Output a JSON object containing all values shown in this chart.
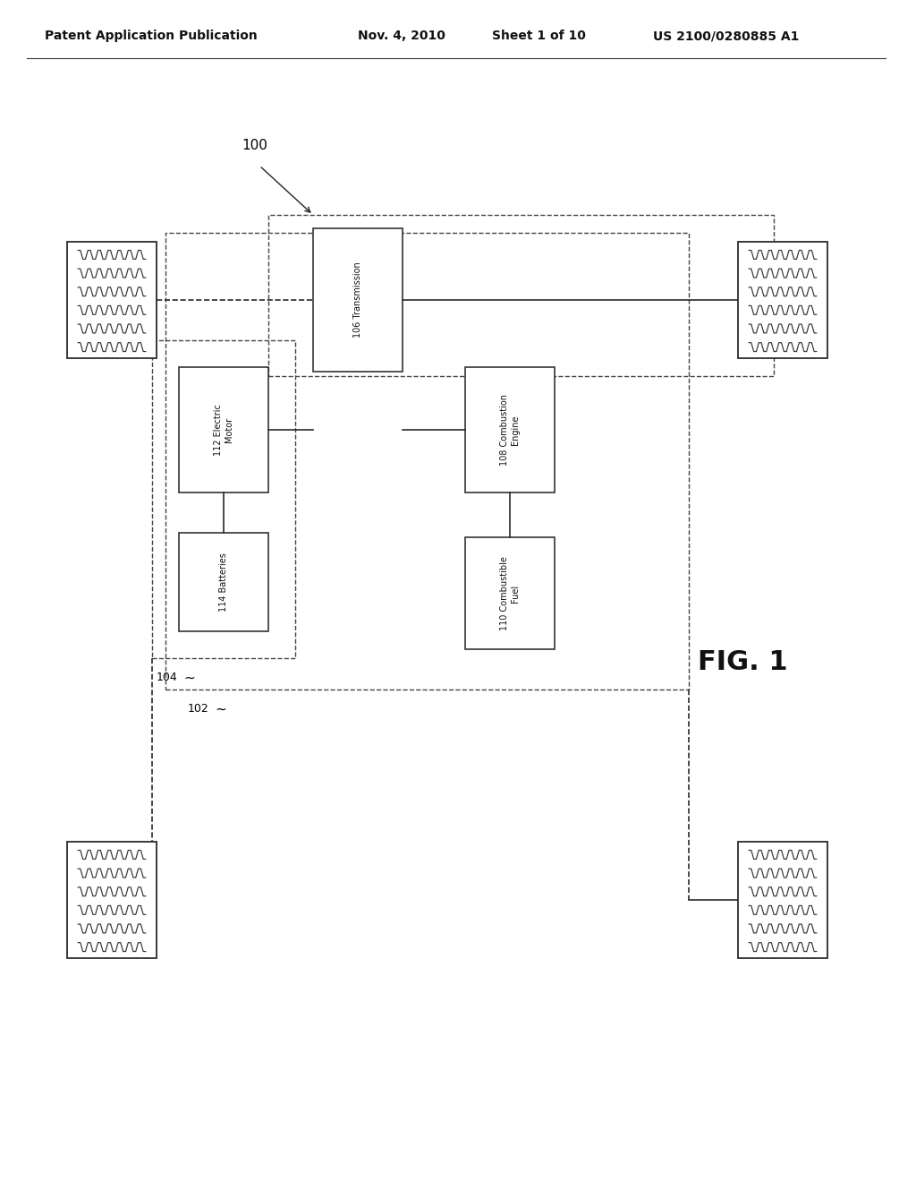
{
  "background_color": "#ffffff",
  "header_text": "Patent Application Publication",
  "header_date": "Nov. 4, 2010",
  "header_sheet": "Sheet 1 of 10",
  "header_patent": "US 2100/0280885 A1",
  "fig_label": "FIG. 1",
  "label_100": "100",
  "label_102": "102",
  "label_104": "104",
  "label_106_text": "106 Transmission",
  "label_108_text": "108 Combustion\nEngine",
  "label_110_text": "110 Combustible\nFuel",
  "label_112_text": "112 Electric\nMotor",
  "label_114_text": "114 Batteries"
}
